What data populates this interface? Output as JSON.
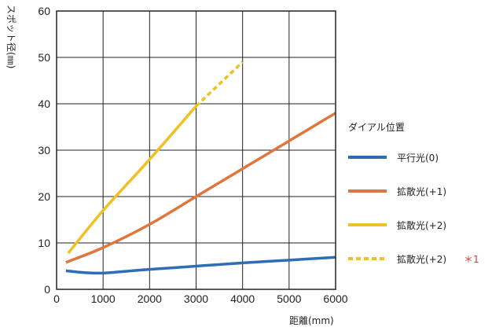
{
  "chart_data": {
    "type": "line",
    "xlabel": "距離(mm)",
    "ylabel": "スポット径(㎜)",
    "xlim": [
      0,
      6000
    ],
    "ylim": [
      0,
      60
    ],
    "x_ticks": [
      "0",
      "1000",
      "2000",
      "3000",
      "4000",
      "5000",
      "6000"
    ],
    "y_ticks": [
      "0",
      "10",
      "20",
      "30",
      "40",
      "50",
      "60"
    ],
    "grid": true,
    "legend_title": "ダイアル位置",
    "legend_position": "right",
    "series": [
      {
        "name": "平行光(0)",
        "color": "#2f6db5",
        "style": "solid",
        "points": [
          [
            200,
            4.0
          ],
          [
            600,
            3.6
          ],
          [
            1000,
            3.5
          ],
          [
            1500,
            3.9
          ],
          [
            2000,
            4.3
          ],
          [
            3000,
            5.0
          ],
          [
            4000,
            5.7
          ],
          [
            5000,
            6.3
          ],
          [
            6000,
            6.9
          ]
        ]
      },
      {
        "name": "拡散光(+1)",
        "color": "#e0763e",
        "style": "solid",
        "points": [
          [
            200,
            5.8
          ],
          [
            1000,
            9.0
          ],
          [
            2000,
            14.0
          ],
          [
            3000,
            20.0
          ],
          [
            4000,
            26.0
          ],
          [
            5000,
            32.0
          ],
          [
            6000,
            38.0
          ]
        ]
      },
      {
        "name": "拡散光(+2)",
        "color": "#efc125",
        "style": "solid",
        "points": [
          [
            250,
            7.8
          ],
          [
            1000,
            17.0
          ],
          [
            2000,
            28.0
          ],
          [
            3000,
            39.5
          ]
        ]
      },
      {
        "name": "拡散光(+2)",
        "color": "#efc125",
        "style": "dashed",
        "note": "＊1",
        "points": [
          [
            3000,
            39.5
          ],
          [
            4000,
            49.0
          ]
        ]
      }
    ]
  }
}
